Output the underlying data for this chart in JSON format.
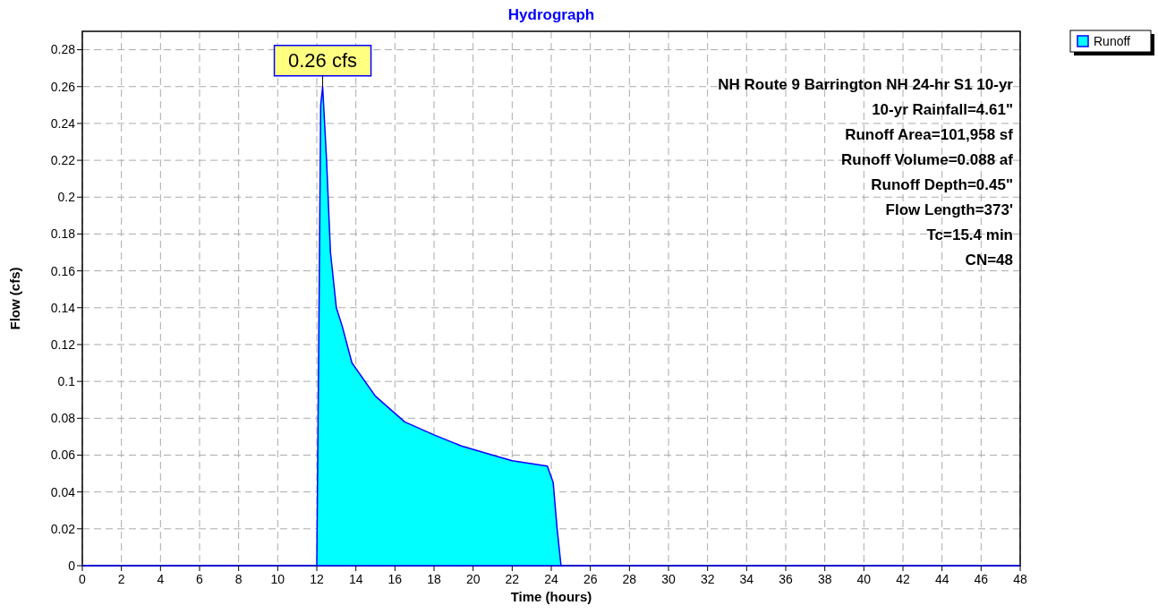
{
  "chart_data": {
    "type": "area",
    "title": "Hydrograph",
    "xlabel": "Time  (hours)",
    "ylabel": "Flow  (cfs)",
    "x": [
      0,
      12,
      12.1,
      12.2,
      12.3,
      12.5,
      12.7,
      13,
      13.3,
      13.8,
      15,
      16.5,
      18,
      19.4,
      21,
      22,
      23.8,
      24.1,
      24.3,
      24.5,
      48
    ],
    "series": [
      {
        "name": "Runoff",
        "color": "#00ffff",
        "values": [
          0,
          0,
          0.12,
          0.25,
          0.26,
          0.22,
          0.17,
          0.14,
          0.13,
          0.11,
          0.092,
          0.078,
          0.071,
          0.065,
          0.06,
          0.057,
          0.054,
          0.045,
          0.02,
          0,
          0
        ]
      }
    ],
    "xlim": [
      0,
      48
    ],
    "xticks": [
      0,
      2,
      4,
      6,
      8,
      10,
      12,
      14,
      16,
      18,
      20,
      22,
      24,
      26,
      28,
      30,
      32,
      34,
      36,
      38,
      40,
      42,
      44,
      46,
      48
    ],
    "ylim": [
      0,
      0.29
    ],
    "yticks": [
      0,
      0.02,
      0.04,
      0.06,
      0.08,
      0.1,
      0.12,
      0.14,
      0.16,
      0.18,
      0.2,
      0.22,
      0.24,
      0.26,
      0.28
    ],
    "grid": true,
    "legend": "top right",
    "annotations": [
      {
        "text": "0.26 cfs",
        "x": 12.3,
        "y": 0.26
      },
      "NH Route 9 Barrington NH 24-hr S1 10-yr",
      "10-yr Rainfall=4.61\"",
      "Runoff Area=101,958 sf",
      "Runoff Volume=0.088 af",
      "Runoff Depth=0.45\"",
      "Flow Length=373'",
      "Tc=15.4 min",
      "CN=48"
    ]
  }
}
